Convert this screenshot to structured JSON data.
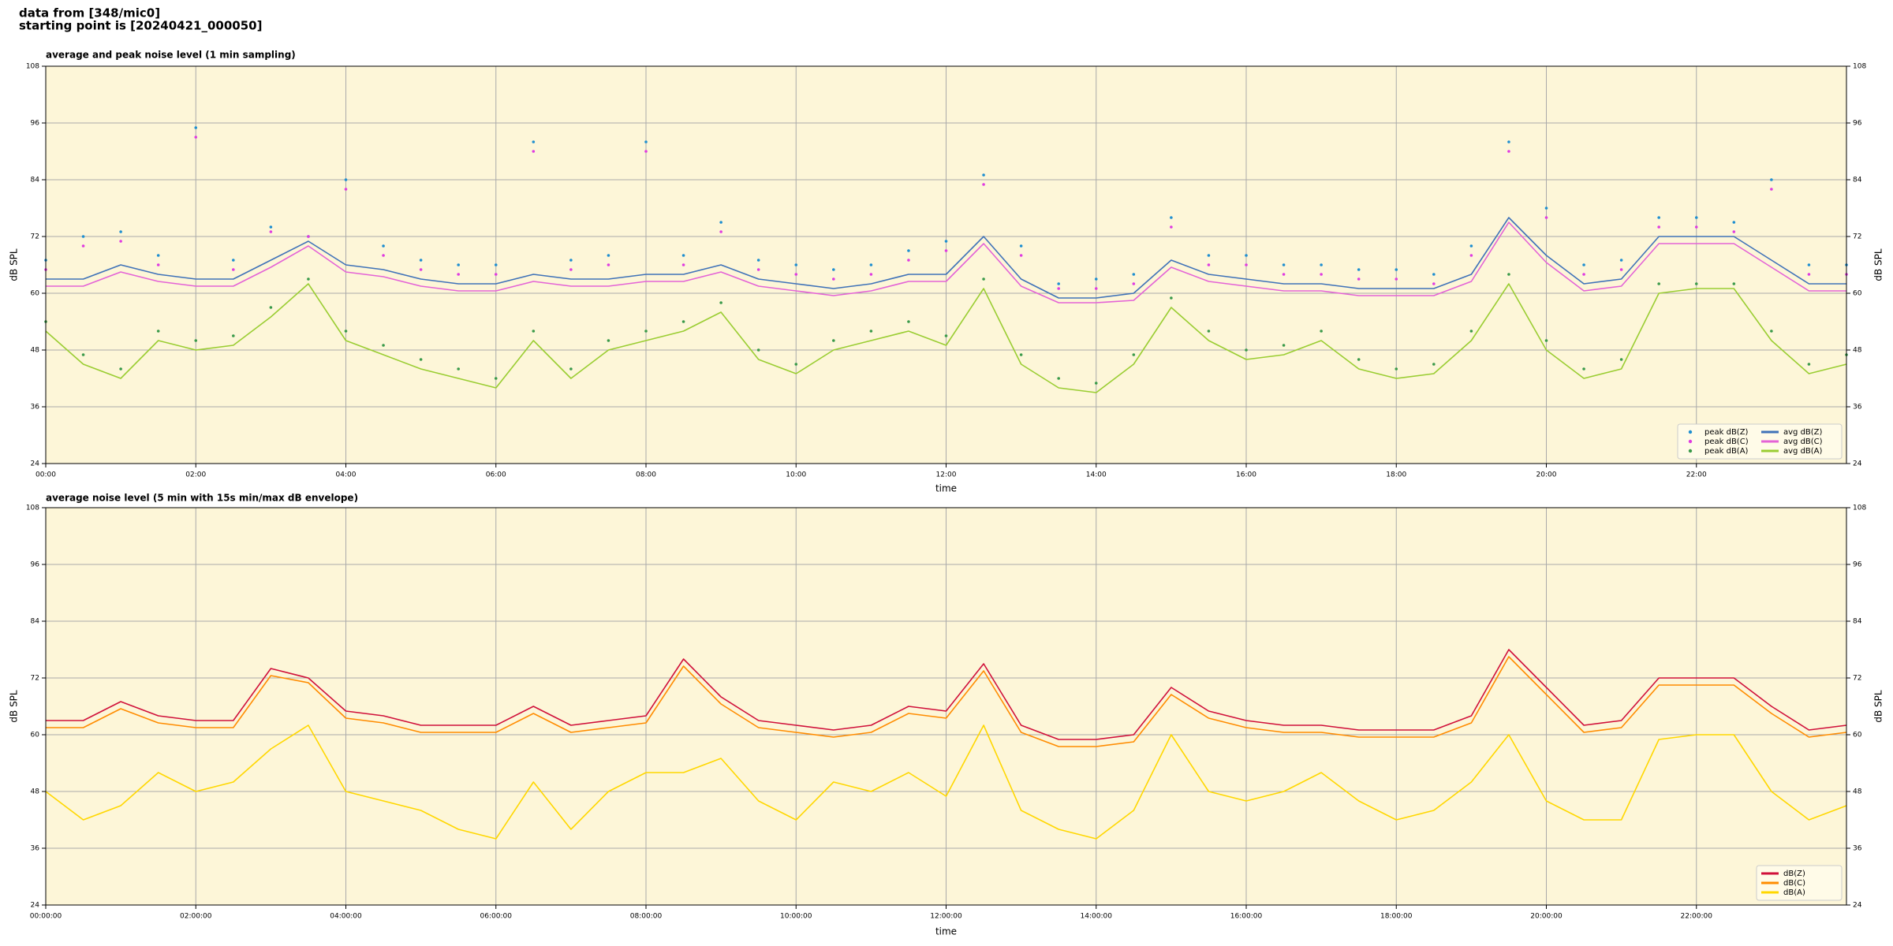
{
  "header": {
    "lines": [
      "data from [348/mic0]",
      "starting point is [20240421_000050]"
    ]
  },
  "chart_data": [
    {
      "type": "line",
      "title": "average and peak noise level (1 min sampling)",
      "x_label": "time",
      "y_label": "dB SPL",
      "xlim": [
        0,
        24
      ],
      "ylim": [
        24,
        108
      ],
      "yticks": [
        24,
        36,
        48,
        60,
        72,
        84,
        96,
        108
      ],
      "xticks": [
        {
          "value": 0,
          "label": "00:00"
        },
        {
          "value": 2,
          "label": "02:00"
        },
        {
          "value": 4,
          "label": "04:00"
        },
        {
          "value": 6,
          "label": "06:00"
        },
        {
          "value": 8,
          "label": "08:00"
        },
        {
          "value": 10,
          "label": "10:00"
        },
        {
          "value": 12,
          "label": "12:00"
        },
        {
          "value": 14,
          "label": "14:00"
        },
        {
          "value": 16,
          "label": "16:00"
        },
        {
          "value": 18,
          "label": "18:00"
        },
        {
          "value": 20,
          "label": "20:00"
        },
        {
          "value": 22,
          "label": "22:00"
        }
      ],
      "grid": true,
      "legend": "lower right",
      "background": "#fdf6d8",
      "x": [
        0,
        0.5,
        1,
        1.5,
        2,
        2.5,
        3,
        3.5,
        4,
        4.5,
        5,
        5.5,
        6,
        6.5,
        7,
        7.5,
        8,
        8.5,
        9,
        9.5,
        10,
        10.5,
        11,
        11.5,
        12,
        12.5,
        13,
        13.5,
        14,
        14.5,
        15,
        15.5,
        16,
        16.5,
        17,
        17.5,
        18,
        18.5,
        19,
        19.5,
        20,
        20.5,
        21,
        21.5,
        22,
        22.5,
        23,
        23.5,
        24
      ],
      "series": [
        {
          "name": "peak dB(Z)",
          "type": "scatter",
          "color": "#1f8fd0",
          "values": [
            67,
            72,
            73,
            68,
            95,
            67,
            74,
            72,
            84,
            70,
            67,
            66,
            66,
            92,
            67,
            68,
            92,
            68,
            75,
            67,
            66,
            65,
            66,
            69,
            71,
            85,
            70,
            62,
            63,
            64,
            76,
            68,
            68,
            66,
            66,
            65,
            65,
            64,
            70,
            92,
            78,
            66,
            67,
            76,
            76,
            75,
            84,
            66,
            66
          ]
        },
        {
          "name": "peak dB(C)",
          "type": "scatter",
          "color": "#e03ce0",
          "values": [
            65,
            70,
            71,
            66,
            93,
            65,
            73,
            72,
            82,
            68,
            65,
            64,
            64,
            90,
            65,
            66,
            90,
            66,
            73,
            65,
            64,
            63,
            64,
            67,
            69,
            83,
            68,
            61,
            61,
            62,
            74,
            66,
            66,
            64,
            64,
            63,
            63,
            62,
            68,
            90,
            76,
            64,
            65,
            74,
            74,
            73,
            82,
            64,
            64
          ]
        },
        {
          "name": "peak dB(A)",
          "type": "scatter",
          "color": "#3a9a4a",
          "values": [
            54,
            47,
            44,
            52,
            50,
            51,
            57,
            63,
            52,
            49,
            46,
            44,
            42,
            52,
            44,
            50,
            52,
            54,
            58,
            48,
            45,
            50,
            52,
            54,
            51,
            63,
            47,
            42,
            41,
            47,
            59,
            52,
            48,
            49,
            52,
            46,
            44,
            45,
            52,
            64,
            50,
            44,
            46,
            62,
            62,
            62,
            52,
            45,
            47
          ]
        },
        {
          "name": "avg dB(Z)",
          "type": "line",
          "color": "#3f72b8",
          "values": [
            63,
            63,
            66,
            64,
            63,
            63,
            67,
            71,
            66,
            65,
            63,
            62,
            62,
            64,
            63,
            63,
            64,
            64,
            66,
            63,
            62,
            61,
            62,
            64,
            64,
            72,
            63,
            59,
            59,
            60,
            67,
            64,
            63,
            62,
            62,
            61,
            61,
            61,
            64,
            76,
            68,
            62,
            63,
            72,
            72,
            72,
            67,
            62,
            62
          ]
        },
        {
          "name": "avg dB(C)",
          "type": "line",
          "color": "#e463d6",
          "values": [
            61.5,
            61.5,
            64.5,
            62.5,
            61.5,
            61.5,
            65.5,
            70,
            64.5,
            63.5,
            61.5,
            60.5,
            60.5,
            62.5,
            61.5,
            61.5,
            62.5,
            62.5,
            64.5,
            61.5,
            60.5,
            59.5,
            60.5,
            62.5,
            62.5,
            70.5,
            61.5,
            58,
            58,
            58.5,
            65.5,
            62.5,
            61.5,
            60.5,
            60.5,
            59.5,
            59.5,
            59.5,
            62.5,
            75,
            66.5,
            60.5,
            61.5,
            70.5,
            70.5,
            70.5,
            65.5,
            60.5,
            60.5
          ]
        },
        {
          "name": "avg dB(A)",
          "type": "line",
          "color": "#9acd32",
          "values": [
            52,
            45,
            42,
            50,
            48,
            49,
            55,
            62,
            50,
            47,
            44,
            42,
            40,
            50,
            42,
            48,
            50,
            52,
            56,
            46,
            43,
            48,
            50,
            52,
            49,
            61,
            45,
            40,
            39,
            45,
            57,
            50,
            46,
            47,
            50,
            44,
            42,
            43,
            50,
            62,
            48,
            42,
            44,
            60,
            61,
            61,
            50,
            43,
            45
          ]
        }
      ]
    },
    {
      "type": "line",
      "title": "average noise level (5 min with 15s min/max dB envelope)",
      "x_label": "time",
      "y_label": "dB SPL",
      "xlim": [
        0,
        24
      ],
      "ylim": [
        24,
        108
      ],
      "yticks": [
        24,
        36,
        48,
        60,
        72,
        84,
        96,
        108
      ],
      "xticks": [
        {
          "value": 0,
          "label": "00:00:00"
        },
        {
          "value": 2,
          "label": "02:00:00"
        },
        {
          "value": 4,
          "label": "04:00:00"
        },
        {
          "value": 6,
          "label": "06:00:00"
        },
        {
          "value": 8,
          "label": "08:00:00"
        },
        {
          "value": 10,
          "label": "10:00:00"
        },
        {
          "value": 12,
          "label": "12:00:00"
        },
        {
          "value": 14,
          "label": "14:00:00"
        },
        {
          "value": 16,
          "label": "16:00:00"
        },
        {
          "value": 18,
          "label": "18:00:00"
        },
        {
          "value": 20,
          "label": "20:00:00"
        },
        {
          "value": 22,
          "label": "22:00:00"
        }
      ],
      "grid": true,
      "legend": "lower right",
      "background": "#fdf6d8",
      "x": [
        0,
        0.5,
        1,
        1.5,
        2,
        2.5,
        3,
        3.5,
        4,
        4.5,
        5,
        5.5,
        6,
        6.5,
        7,
        7.5,
        8,
        8.5,
        9,
        9.5,
        10,
        10.5,
        11,
        11.5,
        12,
        12.5,
        13,
        13.5,
        14,
        14.5,
        15,
        15.5,
        16,
        16.5,
        17,
        17.5,
        18,
        18.5,
        19,
        19.5,
        20,
        20.5,
        21,
        21.5,
        22,
        22.5,
        23,
        23.5,
        24
      ],
      "series": [
        {
          "name": "dB(Z)",
          "type": "line",
          "color": "#d0103a",
          "values": [
            63,
            63,
            67,
            64,
            63,
            63,
            74,
            72,
            65,
            64,
            62,
            62,
            62,
            66,
            62,
            63,
            64,
            76,
            68,
            63,
            62,
            61,
            62,
            66,
            65,
            75,
            62,
            59,
            59,
            60,
            70,
            65,
            63,
            62,
            62,
            61,
            61,
            61,
            64,
            78,
            70,
            62,
            63,
            72,
            72,
            72,
            66,
            61,
            62
          ]
        },
        {
          "name": "dB(C)",
          "type": "line",
          "color": "#ff8c00",
          "values": [
            61.5,
            61.5,
            65.5,
            62.5,
            61.5,
            61.5,
            72.5,
            71,
            63.5,
            62.5,
            60.5,
            60.5,
            60.5,
            64.5,
            60.5,
            61.5,
            62.5,
            74.5,
            66.5,
            61.5,
            60.5,
            59.5,
            60.5,
            64.5,
            63.5,
            73.5,
            60.5,
            57.5,
            57.5,
            58.5,
            68.5,
            63.5,
            61.5,
            60.5,
            60.5,
            59.5,
            59.5,
            59.5,
            62.5,
            76.5,
            68.5,
            60.5,
            61.5,
            70.5,
            70.5,
            70.5,
            64.5,
            59.5,
            60.5
          ]
        },
        {
          "name": "dB(A)",
          "type": "line",
          "color": "#ffd700",
          "values": [
            48,
            42,
            45,
            52,
            48,
            50,
            57,
            62,
            48,
            46,
            44,
            40,
            38,
            50,
            40,
            48,
            52,
            52,
            55,
            46,
            42,
            50,
            48,
            52,
            47,
            62,
            44,
            40,
            38,
            44,
            60,
            48,
            46,
            48,
            52,
            46,
            42,
            44,
            50,
            60,
            46,
            42,
            42,
            59,
            60,
            60,
            48,
            42,
            45
          ]
        }
      ]
    }
  ]
}
